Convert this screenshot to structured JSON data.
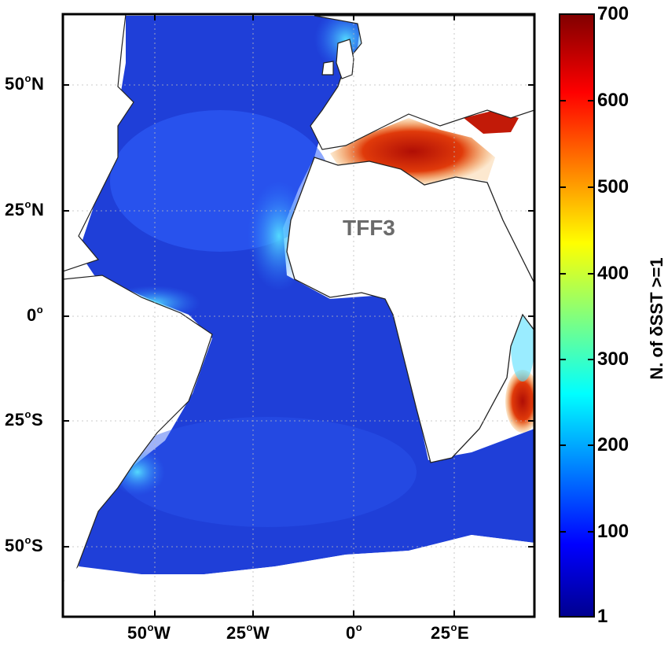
{
  "map": {
    "label": "TFF3",
    "colors": {
      "ocean_low": "#1f3fd8",
      "ocean_mid": "#2a78ff",
      "coast_high": "#cf1b08",
      "land": "#ffffff",
      "coast_line": "#222222"
    }
  },
  "axes": {
    "y_ticks": [
      {
        "deg": "50",
        "hemi": "N"
      },
      {
        "deg": "25",
        "hemi": "N"
      },
      {
        "deg": "0",
        "hemi": ""
      },
      {
        "deg": "25",
        "hemi": "S"
      },
      {
        "deg": "50",
        "hemi": "S"
      }
    ],
    "x_ticks": [
      {
        "deg": "50",
        "hemi": "W"
      },
      {
        "deg": "25",
        "hemi": "W"
      },
      {
        "deg": "0",
        "hemi": ""
      },
      {
        "deg": "25",
        "hemi": "E"
      }
    ]
  },
  "colorbar": {
    "label": "N. of δSST >=1",
    "ticks": [
      "700",
      "600",
      "500",
      "400",
      "300",
      "200",
      "100",
      "1"
    ],
    "min": 1,
    "max": 700,
    "colormap": "jet"
  }
}
